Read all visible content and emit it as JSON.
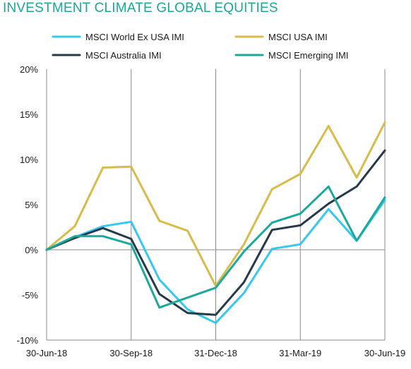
{
  "chart_data": {
    "type": "line",
    "title": "INVESTMENT CLIMATE GLOBAL EQUITIES",
    "xlabel": "",
    "ylabel": "",
    "x_tick_labels": [
      "30-Jun-18",
      "30-Sep-18",
      "31-Dec-18",
      "31-Mar-19",
      "30-Jun-19"
    ],
    "y_tick_labels": [
      "20%",
      "15%",
      "10%",
      "5%",
      "0%",
      "-5%",
      "-10%"
    ],
    "ylim": [
      -10,
      20
    ],
    "y_unit": "%",
    "grid": "vertical lines at quarter ends",
    "legend_position": "top",
    "x": [
      "30-Jun-18",
      "31-Jul-18",
      "31-Aug-18",
      "30-Sep-18",
      "31-Oct-18",
      "30-Nov-18",
      "31-Dec-18",
      "31-Jan-19",
      "28-Feb-19",
      "31-Mar-19",
      "30-Apr-19",
      "31-May-19",
      "30-Jun-19"
    ],
    "series": [
      {
        "name": "MSCI World Ex USA IMI",
        "color": "#35c8f0",
        "values": [
          0,
          1.4,
          2.6,
          3.1,
          -3.3,
          -6.6,
          -8.1,
          -4.8,
          0.1,
          0.6,
          4.5,
          1.0,
          5.5
        ]
      },
      {
        "name": "MSCI USA IMI",
        "color": "#d9bb4a",
        "values": [
          0,
          2.6,
          9.1,
          9.2,
          3.2,
          2.1,
          -4.0,
          0.6,
          6.7,
          8.4,
          13.7,
          8.0,
          14.1
        ]
      },
      {
        "name": "MSCI Australia IMI",
        "color": "#263a4a",
        "values": [
          0,
          1.3,
          2.4,
          1.2,
          -4.9,
          -7.0,
          -7.2,
          -3.6,
          2.2,
          2.7,
          5.1,
          7.0,
          11.0
        ]
      },
      {
        "name": "MSCI Emerging IMI",
        "color": "#1ba99b",
        "values": [
          0,
          1.5,
          1.5,
          0.6,
          -6.4,
          -5.3,
          -4.2,
          -0.2,
          3.0,
          4.0,
          7.0,
          1.0,
          5.8
        ]
      }
    ]
  }
}
